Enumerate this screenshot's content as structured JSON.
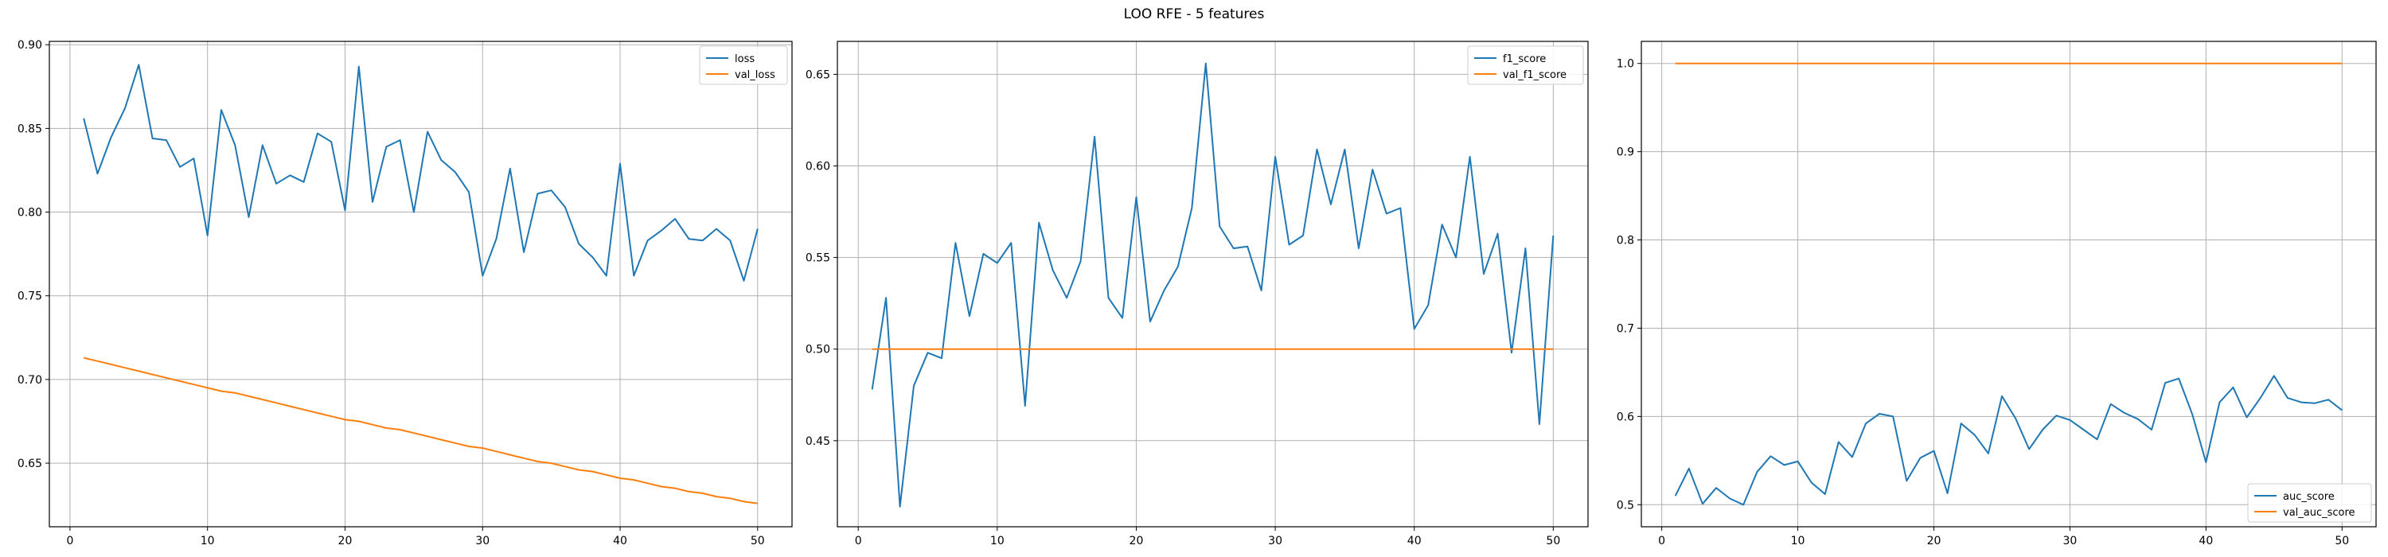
{
  "figure": {
    "title": "LOO RFE - 5 features"
  },
  "chart_data": [
    {
      "type": "line",
      "title": "",
      "xlabel": "",
      "ylabel": "",
      "xlim": [
        -1.5,
        52.5
      ],
      "ylim": [
        0.612,
        0.902
      ],
      "xticks": [
        0,
        10,
        20,
        30,
        40,
        50
      ],
      "yticks": [
        0.65,
        0.7,
        0.75,
        0.8,
        0.85,
        0.9
      ],
      "ytick_labels": [
        "0.65",
        "0.70",
        "0.75",
        "0.80",
        "0.85",
        "0.90"
      ],
      "grid": true,
      "legend_position": "top-right",
      "x": [
        1,
        2,
        3,
        4,
        5,
        6,
        7,
        8,
        9,
        10,
        11,
        12,
        13,
        14,
        15,
        16,
        17,
        18,
        19,
        20,
        21,
        22,
        23,
        24,
        25,
        26,
        27,
        28,
        29,
        30,
        31,
        32,
        33,
        34,
        35,
        36,
        37,
        38,
        39,
        40,
        41,
        42,
        43,
        44,
        45,
        46,
        47,
        48,
        49,
        50
      ],
      "series": [
        {
          "name": "loss",
          "color": "#1f77b4",
          "values": [
            0.856,
            0.823,
            0.845,
            0.862,
            0.888,
            0.844,
            0.843,
            0.827,
            0.832,
            0.786,
            0.861,
            0.84,
            0.797,
            0.84,
            0.817,
            0.822,
            0.818,
            0.847,
            0.842,
            0.801,
            0.887,
            0.806,
            0.839,
            0.843,
            0.8,
            0.848,
            0.831,
            0.824,
            0.812,
            0.762,
            0.784,
            0.826,
            0.776,
            0.811,
            0.813,
            0.803,
            0.781,
            0.773,
            0.762,
            0.829,
            0.762,
            0.783,
            0.789,
            0.796,
            0.784,
            0.783,
            0.79,
            0.783,
            0.759,
            0.79
          ]
        },
        {
          "name": "val_loss",
          "color": "#ff7f0e",
          "values": [
            0.713,
            0.711,
            0.709,
            0.707,
            0.705,
            0.703,
            0.701,
            0.699,
            0.697,
            0.695,
            0.693,
            0.692,
            0.69,
            0.688,
            0.686,
            0.684,
            0.682,
            0.68,
            0.678,
            0.676,
            0.675,
            0.673,
            0.671,
            0.67,
            0.668,
            0.666,
            0.664,
            0.662,
            0.66,
            0.659,
            0.657,
            0.655,
            0.653,
            0.651,
            0.65,
            0.648,
            0.646,
            0.645,
            0.643,
            0.641,
            0.64,
            0.638,
            0.636,
            0.635,
            0.633,
            0.632,
            0.63,
            0.629,
            0.627,
            0.626
          ]
        }
      ]
    },
    {
      "type": "line",
      "title": "",
      "xlabel": "",
      "ylabel": "",
      "xlim": [
        -1.5,
        52.5
      ],
      "ylim": [
        0.403,
        0.668
      ],
      "xticks": [
        0,
        10,
        20,
        30,
        40,
        50
      ],
      "yticks": [
        0.45,
        0.5,
        0.55,
        0.6,
        0.65
      ],
      "ytick_labels": [
        "0.45",
        "0.50",
        "0.55",
        "0.60",
        "0.65"
      ],
      "grid": true,
      "legend_position": "top-right",
      "x": [
        1,
        2,
        3,
        4,
        5,
        6,
        7,
        8,
        9,
        10,
        11,
        12,
        13,
        14,
        15,
        16,
        17,
        18,
        19,
        20,
        21,
        22,
        23,
        24,
        25,
        26,
        27,
        28,
        29,
        30,
        31,
        32,
        33,
        34,
        35,
        36,
        37,
        38,
        39,
        40,
        41,
        42,
        43,
        44,
        45,
        46,
        47,
        48,
        49,
        50
      ],
      "series": [
        {
          "name": "f1_score",
          "color": "#1f77b4",
          "values": [
            0.478,
            0.528,
            0.414,
            0.48,
            0.498,
            0.495,
            0.558,
            0.518,
            0.552,
            0.547,
            0.558,
            0.469,
            0.569,
            0.543,
            0.528,
            0.548,
            0.616,
            0.528,
            0.517,
            0.583,
            0.515,
            0.532,
            0.545,
            0.577,
            0.656,
            0.567,
            0.555,
            0.556,
            0.532,
            0.605,
            0.557,
            0.562,
            0.609,
            0.579,
            0.609,
            0.555,
            0.598,
            0.574,
            0.577,
            0.511,
            0.524,
            0.568,
            0.55,
            0.605,
            0.541,
            0.563,
            0.498,
            0.555,
            0.459,
            0.562
          ]
        },
        {
          "name": "val_f1_score",
          "color": "#ff7f0e",
          "values": [
            0.5,
            0.5,
            0.5,
            0.5,
            0.5,
            0.5,
            0.5,
            0.5,
            0.5,
            0.5,
            0.5,
            0.5,
            0.5,
            0.5,
            0.5,
            0.5,
            0.5,
            0.5,
            0.5,
            0.5,
            0.5,
            0.5,
            0.5,
            0.5,
            0.5,
            0.5,
            0.5,
            0.5,
            0.5,
            0.5,
            0.5,
            0.5,
            0.5,
            0.5,
            0.5,
            0.5,
            0.5,
            0.5,
            0.5,
            0.5,
            0.5,
            0.5,
            0.5,
            0.5,
            0.5,
            0.5,
            0.5,
            0.5,
            0.5,
            0.5
          ]
        }
      ]
    },
    {
      "type": "line",
      "title": "",
      "xlabel": "",
      "ylabel": "",
      "xlim": [
        -1.5,
        52.5
      ],
      "ylim": [
        0.475,
        1.025
      ],
      "xticks": [
        0,
        10,
        20,
        30,
        40,
        50
      ],
      "yticks": [
        0.5,
        0.6,
        0.7,
        0.8,
        0.9,
        1.0
      ],
      "ytick_labels": [
        "0.5",
        "0.6",
        "0.7",
        "0.8",
        "0.9",
        "1.0"
      ],
      "grid": true,
      "legend_position": "bottom-right",
      "x": [
        1,
        2,
        3,
        4,
        5,
        6,
        7,
        8,
        9,
        10,
        11,
        12,
        13,
        14,
        15,
        16,
        17,
        18,
        19,
        20,
        21,
        22,
        23,
        24,
        25,
        26,
        27,
        28,
        29,
        30,
        31,
        32,
        33,
        34,
        35,
        36,
        37,
        38,
        39,
        40,
        41,
        42,
        43,
        44,
        45,
        46,
        47,
        48,
        49,
        50
      ],
      "series": [
        {
          "name": "auc_score",
          "color": "#1f77b4",
          "values": [
            0.51,
            0.541,
            0.501,
            0.519,
            0.507,
            0.5,
            0.537,
            0.555,
            0.545,
            0.549,
            0.525,
            0.512,
            0.571,
            0.554,
            0.592,
            0.603,
            0.6,
            0.527,
            0.553,
            0.561,
            0.513,
            0.592,
            0.579,
            0.558,
            0.623,
            0.598,
            0.563,
            0.585,
            0.601,
            0.596,
            0.585,
            0.574,
            0.614,
            0.604,
            0.597,
            0.585,
            0.638,
            0.643,
            0.602,
            0.548,
            0.616,
            0.633,
            0.599,
            0.621,
            0.646,
            0.621,
            0.616,
            0.615,
            0.619,
            0.607
          ]
        },
        {
          "name": "val_auc_score",
          "color": "#ff7f0e",
          "values": [
            1.0,
            1.0,
            1.0,
            1.0,
            1.0,
            1.0,
            1.0,
            1.0,
            1.0,
            1.0,
            1.0,
            1.0,
            1.0,
            1.0,
            1.0,
            1.0,
            1.0,
            1.0,
            1.0,
            1.0,
            1.0,
            1.0,
            1.0,
            1.0,
            1.0,
            1.0,
            1.0,
            1.0,
            1.0,
            1.0,
            1.0,
            1.0,
            1.0,
            1.0,
            1.0,
            1.0,
            1.0,
            1.0,
            1.0,
            1.0,
            1.0,
            1.0,
            1.0,
            1.0,
            1.0,
            1.0,
            1.0,
            1.0,
            1.0,
            1.0
          ]
        }
      ]
    }
  ]
}
